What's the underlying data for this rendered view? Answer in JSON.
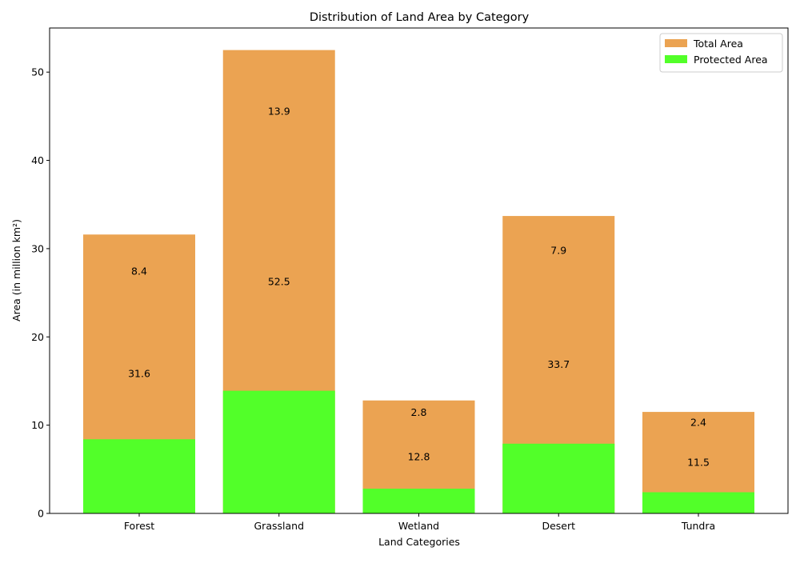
{
  "chart_data": {
    "type": "bar",
    "title": "Distribution of Land Area by Category",
    "xlabel": "Land Categories",
    "ylabel": "Area (in million km²)",
    "categories": [
      "Forest",
      "Grassland",
      "Wetland",
      "Desert",
      "Tundra"
    ],
    "series": [
      {
        "name": "Total Area",
        "values": [
          31.6,
          52.5,
          12.8,
          33.7,
          11.5
        ],
        "color": "#eba352"
      },
      {
        "name": "Protected Area",
        "values": [
          8.4,
          13.9,
          2.8,
          7.9,
          2.4
        ],
        "color": "#52ff29"
      }
    ],
    "ylim": [
      0,
      55
    ],
    "yticks": [
      0,
      10,
      20,
      30,
      40,
      50
    ],
    "grid": false,
    "legend": "top-right"
  }
}
